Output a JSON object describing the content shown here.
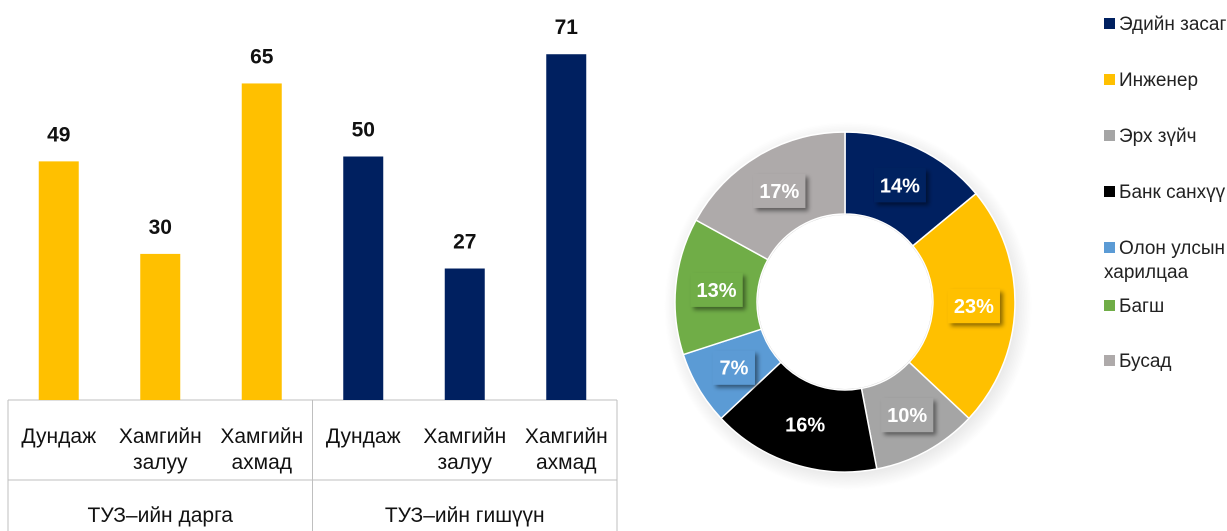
{
  "chart_data": [
    {
      "type": "bar",
      "categories": [
        "Дундаж",
        "Хамгийн залуу",
        "Хамгийн ахмад",
        "Дундаж",
        "Хамгийн залуу",
        "Хамгийн ахмад"
      ],
      "groups": [
        "ТУЗ–ийн дарга",
        "ТУЗ–ийн гишүүн"
      ],
      "values": [
        49,
        30,
        65,
        50,
        27,
        71
      ],
      "colors": [
        "#FFC000",
        "#FFC000",
        "#FFC000",
        "#002060",
        "#002060",
        "#002060"
      ]
    },
    {
      "type": "donut",
      "categories": [
        "Эдийн засагч",
        "Инженер",
        "Эрх зүйч",
        "Банк санхүү",
        "Олон улсын харилцаа",
        "Багш",
        "Бусад"
      ],
      "values": [
        14,
        23,
        10,
        16,
        7,
        13,
        17
      ],
      "value_labels": [
        "14%",
        "23%",
        "10%",
        "16%",
        "7%",
        "13%",
        "17%"
      ],
      "colors": [
        "#002060",
        "#FFC000",
        "#A5A5A5",
        "#000000",
        "#5B9BD5",
        "#70AD47",
        "#AEAAAA"
      ],
      "legend": "right"
    }
  ]
}
